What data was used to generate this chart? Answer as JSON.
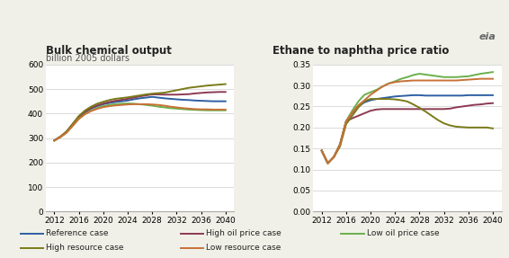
{
  "years": [
    2012,
    2013,
    2014,
    2015,
    2016,
    2017,
    2018,
    2019,
    2020,
    2021,
    2022,
    2023,
    2024,
    2025,
    2026,
    2027,
    2028,
    2029,
    2030,
    2031,
    2032,
    2033,
    2034,
    2035,
    2036,
    2037,
    2038,
    2039,
    2040
  ],
  "bulk_reference": [
    290,
    305,
    325,
    355,
    385,
    405,
    420,
    430,
    438,
    443,
    447,
    450,
    453,
    458,
    462,
    465,
    468,
    465,
    462,
    460,
    458,
    456,
    455,
    453,
    452,
    451,
    450,
    450,
    450
  ],
  "bulk_high_oil": [
    290,
    306,
    326,
    357,
    387,
    408,
    422,
    433,
    441,
    447,
    452,
    456,
    460,
    465,
    470,
    474,
    478,
    478,
    477,
    477,
    477,
    478,
    479,
    482,
    484,
    486,
    487,
    488,
    488
  ],
  "bulk_low_oil": [
    290,
    304,
    322,
    350,
    378,
    398,
    412,
    422,
    430,
    435,
    438,
    440,
    441,
    440,
    438,
    435,
    432,
    428,
    425,
    422,
    420,
    418,
    416,
    415,
    414,
    413,
    413,
    413,
    413
  ],
  "bulk_high_resource": [
    290,
    306,
    327,
    358,
    390,
    412,
    428,
    440,
    448,
    455,
    460,
    463,
    466,
    470,
    474,
    478,
    481,
    483,
    485,
    490,
    495,
    500,
    505,
    508,
    511,
    514,
    516,
    518,
    520
  ],
  "bulk_low_resource": [
    290,
    304,
    322,
    350,
    378,
    397,
    410,
    419,
    426,
    430,
    433,
    435,
    437,
    438,
    438,
    438,
    437,
    435,
    432,
    428,
    425,
    422,
    420,
    418,
    417,
    417,
    416,
    416,
    416
  ],
  "ratio_reference": [
    0.145,
    0.115,
    0.13,
    0.16,
    0.215,
    0.235,
    0.25,
    0.26,
    0.265,
    0.268,
    0.27,
    0.272,
    0.274,
    0.275,
    0.276,
    0.277,
    0.277,
    0.276,
    0.276,
    0.276,
    0.276,
    0.276,
    0.276,
    0.276,
    0.277,
    0.277,
    0.277,
    0.277,
    0.277
  ],
  "ratio_high_oil": [
    0.145,
    0.115,
    0.13,
    0.16,
    0.215,
    0.222,
    0.228,
    0.234,
    0.24,
    0.243,
    0.244,
    0.244,
    0.244,
    0.244,
    0.244,
    0.244,
    0.244,
    0.244,
    0.244,
    0.244,
    0.244,
    0.245,
    0.248,
    0.25,
    0.252,
    0.254,
    0.255,
    0.257,
    0.258
  ],
  "ratio_low_oil": [
    0.145,
    0.115,
    0.13,
    0.16,
    0.215,
    0.24,
    0.262,
    0.278,
    0.284,
    0.29,
    0.298,
    0.305,
    0.31,
    0.316,
    0.32,
    0.325,
    0.328,
    0.326,
    0.324,
    0.322,
    0.32,
    0.32,
    0.32,
    0.321,
    0.322,
    0.325,
    0.328,
    0.33,
    0.332
  ],
  "ratio_high_resource": [
    0.145,
    0.115,
    0.13,
    0.155,
    0.208,
    0.228,
    0.248,
    0.263,
    0.268,
    0.268,
    0.268,
    0.268,
    0.267,
    0.265,
    0.262,
    0.255,
    0.247,
    0.238,
    0.228,
    0.218,
    0.21,
    0.205,
    0.202,
    0.201,
    0.2,
    0.2,
    0.2,
    0.2,
    0.198
  ],
  "ratio_low_resource": [
    0.145,
    0.115,
    0.13,
    0.16,
    0.215,
    0.236,
    0.253,
    0.265,
    0.278,
    0.288,
    0.298,
    0.305,
    0.308,
    0.31,
    0.311,
    0.312,
    0.312,
    0.312,
    0.312,
    0.312,
    0.312,
    0.312,
    0.312,
    0.313,
    0.314,
    0.315,
    0.316,
    0.316,
    0.316
  ],
  "colors": {
    "reference": "#2e5fa3",
    "high_oil": "#8b3a52",
    "low_oil": "#6ab04c",
    "high_resource": "#7a7a1a",
    "low_resource": "#c87137"
  },
  "title_left": "Bulk chemical output",
  "subtitle_left": "billion 2005 dollars",
  "title_right": "Ethane to naphtha price ratio",
  "ylim_left": [
    0,
    600
  ],
  "ylim_right": [
    0.0,
    0.35
  ],
  "yticks_left": [
    0,
    100,
    200,
    300,
    400,
    500,
    600
  ],
  "yticks_right": [
    0.0,
    0.05,
    0.1,
    0.15,
    0.2,
    0.25,
    0.3,
    0.35
  ],
  "xticks": [
    2012,
    2016,
    2020,
    2024,
    2028,
    2032,
    2036,
    2040
  ],
  "legend_row1": [
    "Reference case",
    "High oil price case",
    "Low oil price case"
  ],
  "legend_row2": [
    "High resource case",
    "Low resource case"
  ],
  "legend_colors_row1": [
    "#2e5fa3",
    "#8b3a52",
    "#6ab04c"
  ],
  "legend_colors_row2": [
    "#7a7a1a",
    "#c87137"
  ],
  "background_color": "#f0f0e8",
  "plot_bg": "#ffffff",
  "grid_color": "#cccccc",
  "spine_color": "#aaaaaa"
}
